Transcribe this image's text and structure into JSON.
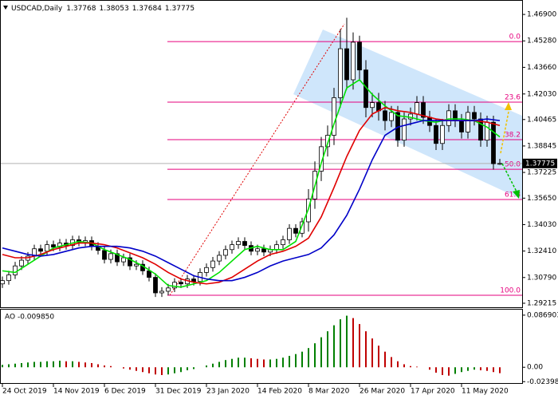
{
  "chart_data": [
    {
      "type": "candlestick",
      "title": "USDCAD,Daily",
      "categories": [
        "24 Oct 2019",
        null,
        null,
        null,
        null,
        null,
        null,
        null,
        "14 Nov 2019",
        null,
        null,
        null,
        null,
        null,
        null,
        null,
        "6 Dec 2019",
        null,
        null,
        null,
        null,
        null,
        null,
        null,
        "31 Dec 2019",
        null,
        null,
        null,
        null,
        null,
        null,
        null,
        "23 Jan 2020",
        null,
        null,
        null,
        null,
        null,
        null,
        null,
        "14 Feb 2020",
        null,
        null,
        null,
        null,
        null,
        null,
        null,
        "8 Mar 2020",
        null,
        null,
        null,
        null,
        null,
        null,
        null,
        "26 Mar 2020",
        null,
        null,
        null,
        null,
        null,
        null,
        null,
        "17 Apr 2020",
        null,
        null,
        null,
        null,
        null,
        null,
        null,
        "11 May 2020",
        null,
        null,
        null,
        null,
        null,
        null
      ],
      "open": [
        1.304,
        1.306,
        1.3095,
        1.315,
        1.3185,
        1.321,
        1.3255,
        1.324,
        1.328,
        1.3265,
        1.329,
        1.3275,
        1.331,
        1.3295,
        1.3305,
        1.327,
        1.3245,
        1.319,
        1.3225,
        1.3175,
        1.32,
        1.315,
        1.316,
        1.312,
        1.308,
        1.2985,
        1.2995,
        1.3015,
        1.305,
        1.304,
        1.307,
        1.3055,
        1.311,
        1.314,
        1.318,
        1.3215,
        1.325,
        1.328,
        1.33,
        1.3275,
        1.324,
        1.3255,
        1.3235,
        1.325,
        1.328,
        1.331,
        1.338,
        1.335,
        1.342,
        1.356,
        1.373,
        1.388,
        1.395,
        1.418,
        1.448,
        1.429,
        1.452,
        1.435,
        1.412,
        1.415,
        1.41,
        1.404,
        1.409,
        1.392,
        1.405,
        1.408,
        1.415,
        1.406,
        1.401,
        1.39,
        1.401,
        1.41,
        1.404,
        1.397,
        1.409,
        1.405,
        1.392,
        1.403,
        1.37768
      ],
      "high": [
        1.3085,
        1.312,
        1.3175,
        1.321,
        1.3235,
        1.328,
        1.328,
        1.3305,
        1.3305,
        1.3315,
        1.3315,
        1.3335,
        1.3335,
        1.333,
        1.333,
        1.3295,
        1.327,
        1.325,
        1.325,
        1.3225,
        1.3225,
        1.3185,
        1.3185,
        1.3145,
        1.3105,
        1.302,
        1.304,
        1.3075,
        1.3075,
        1.3095,
        1.3095,
        1.3135,
        1.3165,
        1.3205,
        1.324,
        1.3275,
        1.3305,
        1.3325,
        1.3325,
        1.33,
        1.328,
        1.328,
        1.3275,
        1.3305,
        1.3335,
        1.3405,
        1.3405,
        1.3445,
        1.362,
        1.379,
        1.394,
        1.401,
        1.424,
        1.46,
        1.467,
        1.458,
        1.456,
        1.441,
        1.421,
        1.421,
        1.416,
        1.413,
        1.413,
        1.409,
        1.412,
        1.419,
        1.419,
        1.41,
        1.405,
        1.405,
        1.414,
        1.414,
        1.408,
        1.413,
        1.413,
        1.409,
        1.407,
        1.407,
        1.38053
      ],
      "low": [
        1.3015,
        1.3035,
        1.307,
        1.3125,
        1.316,
        1.3185,
        1.3215,
        1.3215,
        1.324,
        1.324,
        1.325,
        1.325,
        1.327,
        1.327,
        1.3245,
        1.322,
        1.3165,
        1.3165,
        1.315,
        1.315,
        1.3125,
        1.3125,
        1.3095,
        1.3055,
        1.296,
        1.296,
        1.297,
        1.299,
        1.3015,
        1.3015,
        1.303,
        1.303,
        1.3085,
        1.3115,
        1.3155,
        1.319,
        1.3225,
        1.3255,
        1.325,
        1.3215,
        1.3215,
        1.321,
        1.321,
        1.3225,
        1.3255,
        1.3285,
        1.3325,
        1.3325,
        1.336,
        1.35,
        1.367,
        1.382,
        1.389,
        1.412,
        1.423,
        1.423,
        1.429,
        1.406,
        1.406,
        1.404,
        1.398,
        1.4,
        1.388,
        1.388,
        1.401,
        1.404,
        1.402,
        1.397,
        1.386,
        1.386,
        1.397,
        1.4,
        1.393,
        1.393,
        1.401,
        1.388,
        1.388,
        1.374,
        1.37684
      ],
      "close": [
        1.306,
        1.3095,
        1.315,
        1.3185,
        1.321,
        1.3255,
        1.324,
        1.328,
        1.3265,
        1.329,
        1.3275,
        1.331,
        1.3295,
        1.3305,
        1.327,
        1.3245,
        1.319,
        1.3225,
        1.3175,
        1.32,
        1.315,
        1.316,
        1.312,
        1.308,
        1.2985,
        1.2995,
        1.3015,
        1.305,
        1.304,
        1.307,
        1.3055,
        1.311,
        1.314,
        1.318,
        1.3215,
        1.325,
        1.328,
        1.33,
        1.3275,
        1.324,
        1.3255,
        1.3235,
        1.325,
        1.328,
        1.331,
        1.338,
        1.335,
        1.342,
        1.356,
        1.373,
        1.388,
        1.395,
        1.418,
        1.448,
        1.429,
        1.452,
        1.435,
        1.412,
        1.415,
        1.41,
        1.404,
        1.409,
        1.392,
        1.405,
        1.408,
        1.415,
        1.406,
        1.401,
        1.39,
        1.401,
        1.41,
        1.404,
        1.397,
        1.409,
        1.405,
        1.392,
        1.403,
        1.3776,
        1.37775
      ],
      "series": [
        {
          "color": "#00e000",
          "x": [
            0,
            2,
            4,
            6,
            8,
            10,
            12,
            14,
            16,
            18,
            20,
            22,
            24,
            26,
            28,
            30,
            32,
            34,
            36,
            38,
            40,
            42,
            44,
            46,
            48,
            50,
            52,
            54,
            56,
            58,
            60,
            62,
            64,
            66,
            68,
            70,
            72,
            74,
            76,
            78
          ],
          "values": [
            1.312,
            1.311,
            1.316,
            1.321,
            1.326,
            1.328,
            1.33,
            1.329,
            1.325,
            1.322,
            1.319,
            1.315,
            1.31,
            1.303,
            1.302,
            1.304,
            1.306,
            1.311,
            1.318,
            1.325,
            1.327,
            1.325,
            1.325,
            1.33,
            1.35,
            1.378,
            1.402,
            1.424,
            1.429,
            1.42,
            1.413,
            1.407,
            1.406,
            1.404,
            1.403,
            1.405,
            1.405,
            1.404,
            1.4,
            1.394
          ]
        },
        {
          "color": "#e00000",
          "x": [
            0,
            2,
            4,
            6,
            8,
            10,
            12,
            14,
            16,
            18,
            20,
            22,
            24,
            26,
            28,
            30,
            32,
            34,
            36,
            38,
            40,
            42,
            44,
            46,
            48,
            50,
            52,
            54,
            56,
            58,
            60,
            62,
            64,
            66,
            68,
            70,
            72,
            74,
            76,
            78
          ],
          "values": [
            1.322,
            1.32,
            1.32,
            1.322,
            1.325,
            1.327,
            1.329,
            1.329,
            1.328,
            1.326,
            1.323,
            1.32,
            1.316,
            1.311,
            1.307,
            1.305,
            1.304,
            1.305,
            1.308,
            1.313,
            1.318,
            1.322,
            1.324,
            1.327,
            1.332,
            1.345,
            1.363,
            1.382,
            1.398,
            1.408,
            1.412,
            1.41,
            1.409,
            1.407,
            1.405,
            1.404,
            1.404,
            1.404,
            1.403,
            1.401
          ]
        },
        {
          "color": "#0000c8",
          "x": [
            0,
            2,
            4,
            6,
            8,
            10,
            12,
            14,
            16,
            18,
            20,
            22,
            24,
            26,
            28,
            30,
            32,
            34,
            36,
            38,
            40,
            42,
            44,
            46,
            48,
            50,
            52,
            54,
            56,
            58,
            60,
            62,
            64,
            66,
            68,
            70,
            72,
            74,
            76,
            78
          ],
          "values": [
            1.326,
            1.324,
            1.322,
            1.321,
            1.322,
            1.324,
            1.326,
            1.327,
            1.327,
            1.327,
            1.326,
            1.324,
            1.321,
            1.317,
            1.313,
            1.309,
            1.307,
            1.306,
            1.306,
            1.308,
            1.311,
            1.315,
            1.318,
            1.32,
            1.322,
            1.326,
            1.334,
            1.346,
            1.362,
            1.38,
            1.395,
            1.4,
            1.402,
            1.404,
            1.404,
            1.404,
            1.404,
            1.404,
            1.405,
            1.404
          ]
        }
      ],
      "fibonacci": [
        {
          "label": "0.0",
          "value": 1.4524
        },
        {
          "label": "23.6",
          "value": 1.4153
        },
        {
          "label": "38.2",
          "value": 1.3923
        },
        {
          "label": "50.0",
          "value": 1.3742
        },
        {
          "label": "61.8",
          "value": 1.3557
        },
        {
          "label": "100.0",
          "value": 1.297
        }
      ],
      "fib_color": "#e6007e",
      "current_price": 1.37775,
      "ylim": [
        1.2897,
        1.4754
      ],
      "yticks": [
        {
          "value": 1.469,
          "label": "1.46900"
        },
        {
          "value": 1.4528,
          "label": "1.45280"
        },
        {
          "value": 1.4366,
          "label": "1.43660"
        },
        {
          "value": 1.4203,
          "label": "1.42030"
        },
        1.40465,
        1.38845,
        1.37225,
        {
          "value": 1.3565,
          "label": "1.35650"
        },
        {
          "value": 1.3403,
          "label": "1.34030"
        },
        {
          "value": 1.3241,
          "label": "1.32410"
        },
        {
          "value": 1.3079,
          "label": "1.30790"
        },
        1.29215
      ]
    },
    {
      "type": "bar",
      "title": "AO -0.009850",
      "values": [
        0.004,
        0.005,
        0.006,
        0.007,
        0.008,
        0.009,
        0.009,
        0.01,
        0.01,
        0.011,
        0.01,
        0.01,
        0.009,
        0.008,
        0.007,
        0.005,
        0.003,
        0.002,
        0.0,
        -0.002,
        -0.004,
        -0.006,
        -0.008,
        -0.01,
        -0.012,
        -0.013,
        -0.012,
        -0.01,
        -0.008,
        -0.005,
        -0.003,
        0.0,
        0.003,
        0.006,
        0.009,
        0.012,
        0.014,
        0.016,
        0.016,
        0.015,
        0.014,
        0.013,
        0.013,
        0.014,
        0.016,
        0.019,
        0.022,
        0.026,
        0.032,
        0.04,
        0.05,
        0.06,
        0.07,
        0.08,
        0.086,
        0.082,
        0.072,
        0.06,
        0.048,
        0.036,
        0.026,
        0.017,
        0.01,
        0.005,
        0.002,
        0.001,
        0.0,
        -0.004,
        -0.009,
        -0.013,
        -0.014,
        -0.011,
        -0.008,
        -0.006,
        -0.004,
        -0.005,
        -0.006,
        -0.008,
        -0.00985
      ],
      "rising_color": "#008000",
      "falling_color": "#c00000",
      "ylim": [
        -0.0263,
        0.0961
      ],
      "yticks": [
        0.086903,
        {
          "value": 0,
          "label": "0.00"
        },
        -0.023985
      ]
    }
  ]
}
